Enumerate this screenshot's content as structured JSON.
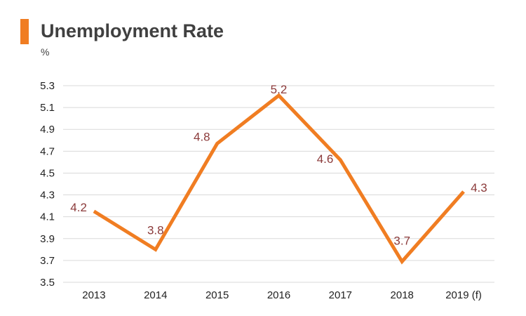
{
  "chart_data": {
    "type": "line",
    "title": "Unemployment Rate",
    "ylabel": "%",
    "categories": [
      "2013",
      "2014",
      "2015",
      "2016",
      "2017",
      "2018",
      "2019 (f)"
    ],
    "values": [
      4.15,
      3.8,
      4.77,
      5.21,
      4.62,
      3.69,
      4.33
    ],
    "data_labels": [
      "4.2",
      "3.8",
      "4.8",
      "5.2",
      "4.6",
      "3.7",
      "4.3"
    ],
    "yticks": [
      "3.5",
      "3.7",
      "3.9",
      "4.1",
      "4.3",
      "4.5",
      "4.7",
      "4.9",
      "5.1",
      "5.3"
    ],
    "ylim": [
      3.5,
      5.3
    ],
    "grid": true,
    "line_color": "#f07d22",
    "accent_color": "#f07d22"
  }
}
